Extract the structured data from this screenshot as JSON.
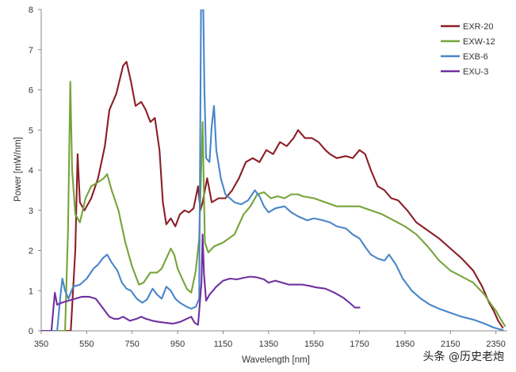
{
  "chart_data": {
    "type": "line",
    "title": "",
    "xlabel": "Wavelength [nm]",
    "ylabel": "Power [mW/nm]",
    "xlim": [
      350,
      2400
    ],
    "ylim": [
      0,
      8
    ],
    "xticks": [
      350,
      550,
      750,
      950,
      1150,
      1350,
      1550,
      1750,
      1950,
      2150,
      2350
    ],
    "yticks": [
      0,
      1,
      2,
      3,
      4,
      5,
      6,
      7,
      8
    ],
    "grid": false,
    "legend_position": "top-right",
    "series": [
      {
        "name": "EXR-20",
        "color": "#8B1E28",
        "points": [
          [
            350,
            0
          ],
          [
            480,
            0
          ],
          [
            500,
            2.0
          ],
          [
            510,
            4.4
          ],
          [
            520,
            3.2
          ],
          [
            540,
            3.0
          ],
          [
            570,
            3.3
          ],
          [
            600,
            3.8
          ],
          [
            630,
            4.6
          ],
          [
            650,
            5.5
          ],
          [
            680,
            5.9
          ],
          [
            710,
            6.6
          ],
          [
            725,
            6.7
          ],
          [
            745,
            6.2
          ],
          [
            765,
            5.6
          ],
          [
            790,
            5.7
          ],
          [
            810,
            5.5
          ],
          [
            830,
            5.2
          ],
          [
            850,
            5.3
          ],
          [
            870,
            4.5
          ],
          [
            885,
            3.2
          ],
          [
            900,
            2.65
          ],
          [
            920,
            2.8
          ],
          [
            940,
            2.6
          ],
          [
            960,
            2.9
          ],
          [
            980,
            3.0
          ],
          [
            1000,
            2.95
          ],
          [
            1020,
            3.05
          ],
          [
            1040,
            3.6
          ],
          [
            1050,
            3.0
          ],
          [
            1060,
            3.2
          ],
          [
            1080,
            3.8
          ],
          [
            1100,
            3.2
          ],
          [
            1130,
            3.3
          ],
          [
            1160,
            3.3
          ],
          [
            1190,
            3.5
          ],
          [
            1220,
            3.8
          ],
          [
            1250,
            4.2
          ],
          [
            1280,
            4.3
          ],
          [
            1310,
            4.2
          ],
          [
            1340,
            4.5
          ],
          [
            1370,
            4.4
          ],
          [
            1400,
            4.7
          ],
          [
            1430,
            4.6
          ],
          [
            1460,
            4.8
          ],
          [
            1480,
            5.0
          ],
          [
            1510,
            4.8
          ],
          [
            1540,
            4.8
          ],
          [
            1570,
            4.7
          ],
          [
            1600,
            4.5
          ],
          [
            1620,
            4.4
          ],
          [
            1650,
            4.3
          ],
          [
            1690,
            4.35
          ],
          [
            1720,
            4.3
          ],
          [
            1750,
            4.5
          ],
          [
            1775,
            4.4
          ],
          [
            1800,
            4.0
          ],
          [
            1830,
            3.6
          ],
          [
            1860,
            3.5
          ],
          [
            1890,
            3.3
          ],
          [
            1920,
            3.25
          ],
          [
            1960,
            3.0
          ],
          [
            2000,
            2.7
          ],
          [
            2050,
            2.5
          ],
          [
            2100,
            2.3
          ],
          [
            2150,
            2.05
          ],
          [
            2200,
            1.8
          ],
          [
            2250,
            1.5
          ],
          [
            2290,
            1.1
          ],
          [
            2320,
            0.7
          ],
          [
            2340,
            0.5
          ],
          [
            2360,
            0.25
          ],
          [
            2380,
            0.08
          ]
        ]
      },
      {
        "name": "EXW-12",
        "color": "#77A33A",
        "points": [
          [
            350,
            0
          ],
          [
            455,
            0
          ],
          [
            468,
            2.5
          ],
          [
            478,
            6.2
          ],
          [
            486,
            4.0
          ],
          [
            500,
            2.9
          ],
          [
            520,
            2.7
          ],
          [
            545,
            3.3
          ],
          [
            570,
            3.6
          ],
          [
            600,
            3.7
          ],
          [
            625,
            3.8
          ],
          [
            640,
            3.9
          ],
          [
            660,
            3.5
          ],
          [
            690,
            3.0
          ],
          [
            720,
            2.2
          ],
          [
            750,
            1.6
          ],
          [
            780,
            1.15
          ],
          [
            800,
            1.2
          ],
          [
            830,
            1.45
          ],
          [
            860,
            1.45
          ],
          [
            880,
            1.55
          ],
          [
            900,
            1.8
          ],
          [
            920,
            2.05
          ],
          [
            935,
            1.9
          ],
          [
            950,
            1.55
          ],
          [
            970,
            1.3
          ],
          [
            990,
            1.05
          ],
          [
            1010,
            0.95
          ],
          [
            1030,
            1.5
          ],
          [
            1045,
            2.3
          ],
          [
            1060,
            5.2
          ],
          [
            1070,
            2.2
          ],
          [
            1085,
            1.95
          ],
          [
            1110,
            2.1
          ],
          [
            1150,
            2.2
          ],
          [
            1200,
            2.4
          ],
          [
            1240,
            2.9
          ],
          [
            1270,
            3.1
          ],
          [
            1300,
            3.4
          ],
          [
            1330,
            3.45
          ],
          [
            1360,
            3.3
          ],
          [
            1390,
            3.35
          ],
          [
            1420,
            3.3
          ],
          [
            1450,
            3.4
          ],
          [
            1480,
            3.4
          ],
          [
            1500,
            3.35
          ],
          [
            1550,
            3.3
          ],
          [
            1600,
            3.2
          ],
          [
            1650,
            3.1
          ],
          [
            1700,
            3.1
          ],
          [
            1750,
            3.1
          ],
          [
            1800,
            3.0
          ],
          [
            1850,
            2.9
          ],
          [
            1900,
            2.75
          ],
          [
            1950,
            2.6
          ],
          [
            2000,
            2.4
          ],
          [
            2050,
            2.1
          ],
          [
            2100,
            1.75
          ],
          [
            2150,
            1.5
          ],
          [
            2200,
            1.35
          ],
          [
            2250,
            1.2
          ],
          [
            2300,
            0.9
          ],
          [
            2330,
            0.65
          ],
          [
            2350,
            0.5
          ],
          [
            2370,
            0.3
          ],
          [
            2390,
            0.12
          ]
        ]
      },
      {
        "name": "EXB-6",
        "color": "#4A86C8",
        "points": [
          [
            350,
            0
          ],
          [
            420,
            0
          ],
          [
            435,
            0.9
          ],
          [
            443,
            1.3
          ],
          [
            455,
            1.0
          ],
          [
            470,
            0.8
          ],
          [
            490,
            1.1
          ],
          [
            520,
            1.15
          ],
          [
            550,
            1.3
          ],
          [
            580,
            1.55
          ],
          [
            600,
            1.65
          ],
          [
            620,
            1.8
          ],
          [
            640,
            1.9
          ],
          [
            660,
            1.7
          ],
          [
            685,
            1.5
          ],
          [
            705,
            1.2
          ],
          [
            725,
            1.05
          ],
          [
            745,
            1.0
          ],
          [
            770,
            0.8
          ],
          [
            795,
            0.7
          ],
          [
            815,
            0.78
          ],
          [
            840,
            1.05
          ],
          [
            860,
            0.9
          ],
          [
            880,
            0.8
          ],
          [
            900,
            1.1
          ],
          [
            920,
            1.0
          ],
          [
            940,
            0.8
          ],
          [
            960,
            0.7
          ],
          [
            990,
            0.6
          ],
          [
            1010,
            0.55
          ],
          [
            1030,
            0.6
          ],
          [
            1045,
            0.8
          ],
          [
            1053,
            8.0
          ],
          [
            1063,
            8.0
          ],
          [
            1068,
            6.0
          ],
          [
            1075,
            4.3
          ],
          [
            1090,
            4.2
          ],
          [
            1100,
            5.1
          ],
          [
            1110,
            5.6
          ],
          [
            1120,
            4.5
          ],
          [
            1140,
            3.8
          ],
          [
            1160,
            3.4
          ],
          [
            1180,
            3.3
          ],
          [
            1200,
            3.2
          ],
          [
            1230,
            3.15
          ],
          [
            1260,
            3.25
          ],
          [
            1290,
            3.5
          ],
          [
            1310,
            3.35
          ],
          [
            1330,
            3.1
          ],
          [
            1350,
            2.95
          ],
          [
            1380,
            3.05
          ],
          [
            1420,
            3.1
          ],
          [
            1450,
            2.95
          ],
          [
            1480,
            2.85
          ],
          [
            1520,
            2.75
          ],
          [
            1550,
            2.8
          ],
          [
            1590,
            2.75
          ],
          [
            1620,
            2.7
          ],
          [
            1650,
            2.6
          ],
          [
            1690,
            2.55
          ],
          [
            1720,
            2.4
          ],
          [
            1750,
            2.3
          ],
          [
            1780,
            2.05
          ],
          [
            1800,
            1.9
          ],
          [
            1830,
            1.8
          ],
          [
            1860,
            1.75
          ],
          [
            1880,
            1.9
          ],
          [
            1910,
            1.65
          ],
          [
            1940,
            1.3
          ],
          [
            1980,
            1.0
          ],
          [
            2020,
            0.8
          ],
          [
            2060,
            0.65
          ],
          [
            2100,
            0.55
          ],
          [
            2150,
            0.45
          ],
          [
            2200,
            0.35
          ],
          [
            2250,
            0.28
          ],
          [
            2300,
            0.18
          ],
          [
            2340,
            0.08
          ],
          [
            2380,
            0.02
          ]
        ]
      },
      {
        "name": "EXU-3",
        "color": "#7030A0",
        "points": [
          [
            350,
            0
          ],
          [
            395,
            0
          ],
          [
            405,
            0.65
          ],
          [
            410,
            0.95
          ],
          [
            420,
            0.65
          ],
          [
            440,
            0.7
          ],
          [
            470,
            0.75
          ],
          [
            500,
            0.8
          ],
          [
            530,
            0.85
          ],
          [
            560,
            0.85
          ],
          [
            590,
            0.8
          ],
          [
            610,
            0.65
          ],
          [
            630,
            0.5
          ],
          [
            650,
            0.35
          ],
          [
            670,
            0.3
          ],
          [
            690,
            0.3
          ],
          [
            710,
            0.35
          ],
          [
            740,
            0.25
          ],
          [
            770,
            0.3
          ],
          [
            790,
            0.35
          ],
          [
            810,
            0.3
          ],
          [
            840,
            0.25
          ],
          [
            870,
            0.22
          ],
          [
            900,
            0.2
          ],
          [
            930,
            0.18
          ],
          [
            960,
            0.22
          ],
          [
            990,
            0.3
          ],
          [
            1010,
            0.35
          ],
          [
            1025,
            0.2
          ],
          [
            1040,
            0.15
          ],
          [
            1055,
            1.2
          ],
          [
            1060,
            2.4
          ],
          [
            1066,
            1.4
          ],
          [
            1075,
            0.75
          ],
          [
            1090,
            0.9
          ],
          [
            1120,
            1.1
          ],
          [
            1150,
            1.25
          ],
          [
            1180,
            1.3
          ],
          [
            1210,
            1.28
          ],
          [
            1240,
            1.32
          ],
          [
            1270,
            1.35
          ],
          [
            1300,
            1.33
          ],
          [
            1330,
            1.28
          ],
          [
            1350,
            1.2
          ],
          [
            1380,
            1.25
          ],
          [
            1410,
            1.2
          ],
          [
            1440,
            1.15
          ],
          [
            1470,
            1.15
          ],
          [
            1500,
            1.15
          ],
          [
            1530,
            1.12
          ],
          [
            1560,
            1.08
          ],
          [
            1600,
            1.05
          ],
          [
            1640,
            0.95
          ],
          [
            1680,
            0.82
          ],
          [
            1710,
            0.68
          ],
          [
            1730,
            0.58
          ],
          [
            1750,
            0.58
          ]
        ]
      }
    ]
  },
  "watermark": "头条 @历史老炮"
}
